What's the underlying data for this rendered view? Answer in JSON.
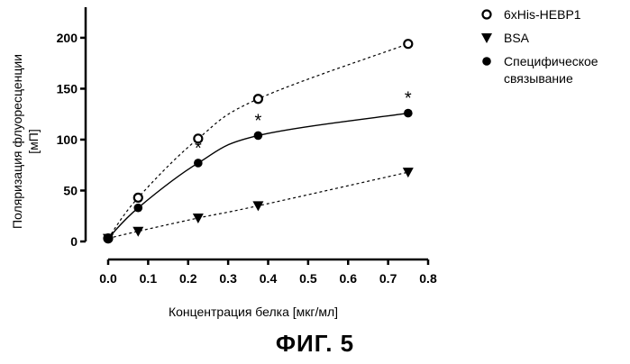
{
  "chart_data": {
    "type": "scatter",
    "xlabel": "Концентрация белка [мкг/мл]",
    "ylabel": "Поляризация флуоресценции [мП]",
    "xlim": [
      0.0,
      0.8
    ],
    "ylim": [
      0,
      230
    ],
    "x_ticks": [
      "0.0",
      "0.1",
      "0.2",
      "0.3",
      "0.4",
      "0.5",
      "0.6",
      "0.7",
      "0.8"
    ],
    "y_ticks": [
      "0",
      "50",
      "100",
      "150",
      "200"
    ],
    "grid": false,
    "legend_position": "top-right",
    "series": [
      {
        "name": "6xHis-HEBP1",
        "marker": "open-circle",
        "line": "dashed",
        "color": "#000000",
        "points": [
          [
            0.0,
            3
          ],
          [
            0.075,
            43
          ],
          [
            0.225,
            101
          ],
          [
            0.375,
            140
          ],
          [
            0.75,
            194
          ]
        ]
      },
      {
        "name": "BSA",
        "marker": "down-triangle",
        "line": "dashed",
        "color": "#000000",
        "points": [
          [
            0.0,
            3
          ],
          [
            0.075,
            10
          ],
          [
            0.225,
            23
          ],
          [
            0.375,
            35
          ],
          [
            0.75,
            68
          ]
        ]
      },
      {
        "name": "Специфическое связывание",
        "marker": "filled-circle",
        "line": "solid",
        "color": "#000000",
        "points": [
          [
            0.0,
            3
          ],
          [
            0.075,
            33
          ],
          [
            0.225,
            77
          ],
          [
            0.375,
            104
          ],
          [
            0.75,
            126
          ]
        ]
      }
    ],
    "annotations": [
      {
        "text": "*",
        "x": 0.225
      },
      {
        "text": "*",
        "x": 0.375
      },
      {
        "text": "*",
        "x": 0.75
      }
    ]
  },
  "figure_caption": "ФИГ. 5"
}
